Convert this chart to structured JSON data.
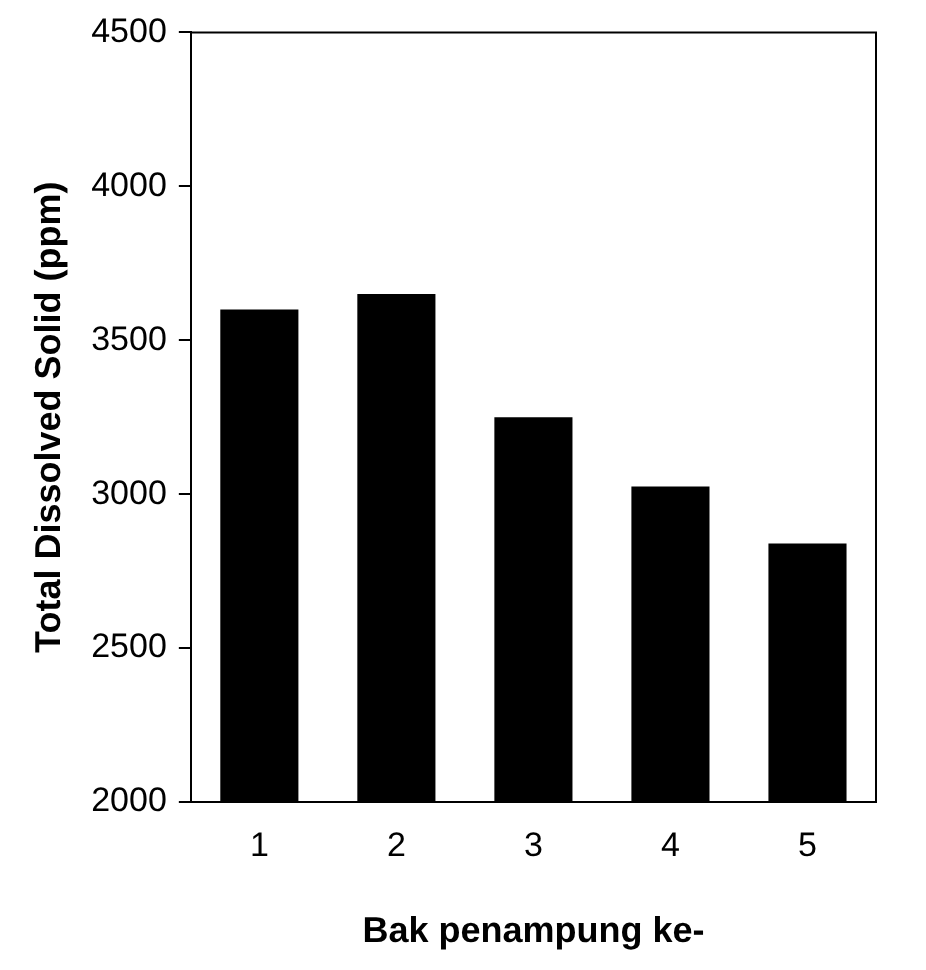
{
  "chart_data": {
    "type": "bar",
    "xlabel": "Bak penampung ke-",
    "ylabel": "Total Dissolved Solid (ppm)",
    "categories": [
      "1",
      "2",
      "3",
      "4",
      "5"
    ],
    "values": [
      3600,
      3650,
      3250,
      3025,
      2840
    ],
    "color": "#000000",
    "ylim": [
      2000,
      4500
    ],
    "yticks": [
      2000,
      2500,
      3000,
      3500,
      4000,
      4500
    ],
    "grid": false,
    "legend": false
  }
}
